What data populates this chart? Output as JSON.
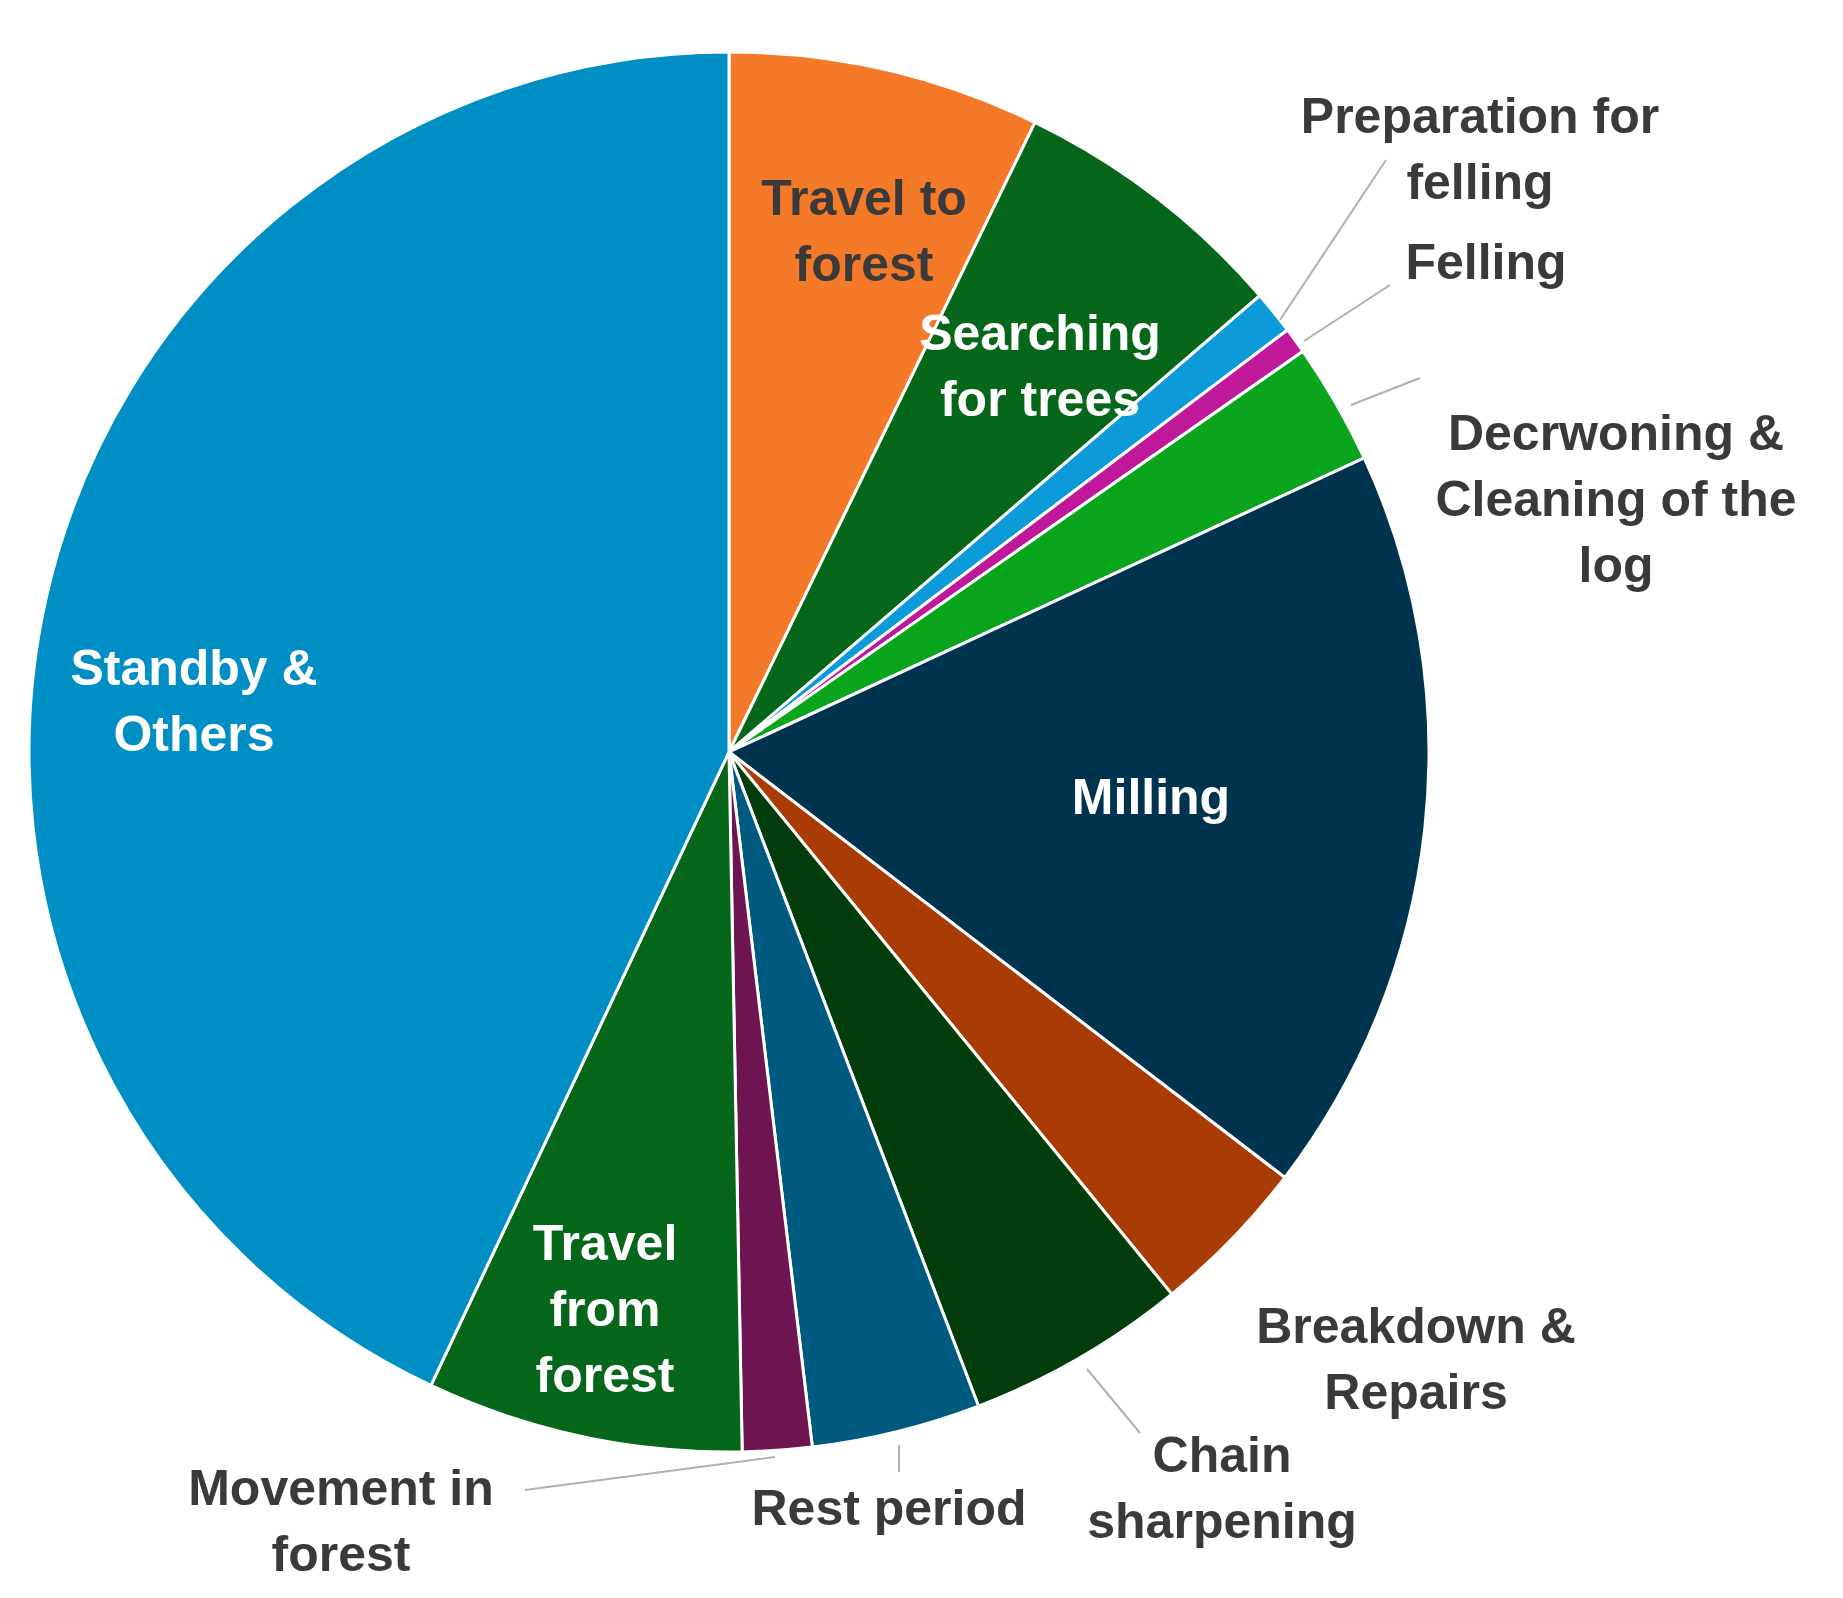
{
  "chart_data": {
    "type": "pie",
    "categories": [
      "Travel to forest",
      "Searching for trees",
      "Preparation for felling",
      "Felling",
      "Decrwoning & Cleaning of the log",
      "Milling",
      "Breakdown & Repairs",
      "Chain sharpening",
      "Rest period",
      "Movement in forest",
      "Travel from forest",
      "Standby & Others"
    ],
    "values": [
      7.2,
      6.5,
      1.0,
      0.6,
      2.8,
      17.3,
      3.7,
      5.1,
      3.9,
      1.6,
      7.3,
      43.0
    ],
    "colors": [
      "#f47a2a",
      "#06661a",
      "#0d9ad8",
      "#c0189a",
      "#0aa51c",
      "#00344e",
      "#a83c04",
      "#033d0c",
      "#005a80",
      "#6e1450",
      "#06661a",
      "#008fc4"
    ],
    "legend": false
  }
}
